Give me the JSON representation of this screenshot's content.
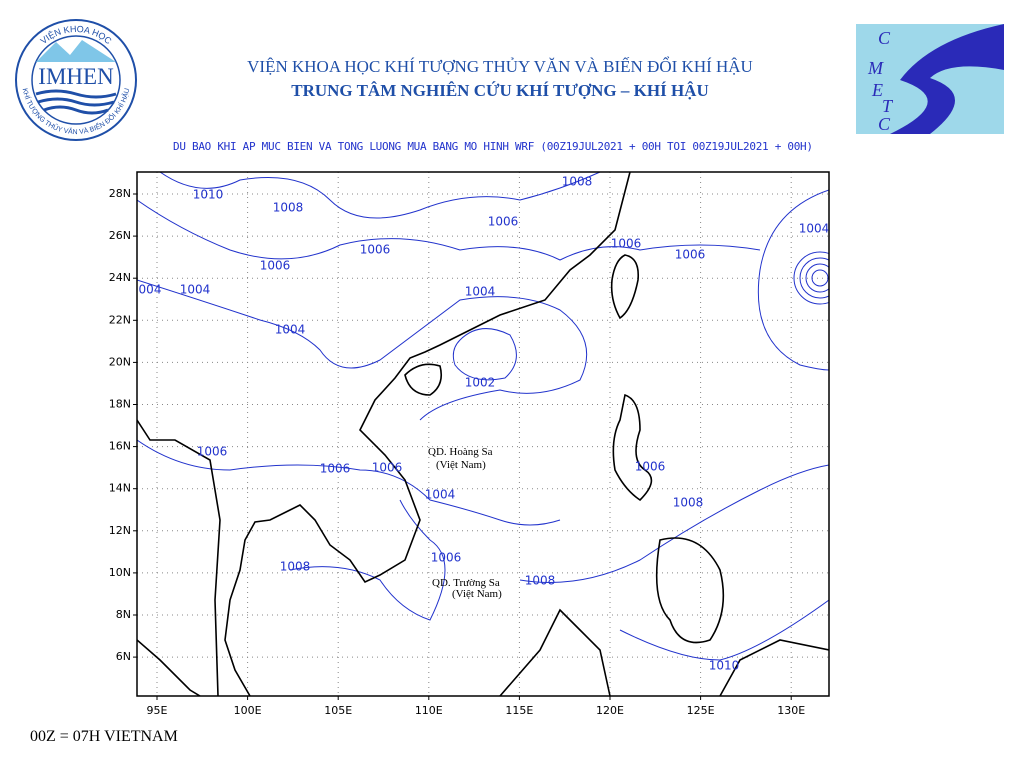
{
  "header": {
    "institute": "VIỆN KHOA HỌC KHÍ TƯỢNG THỦY VĂN VÀ BIẾN ĐỔI KHÍ HẬU",
    "center": "TRUNG TÂM NGHIÊN CỨU KHÍ TƯỢNG – KHÍ HẬU"
  },
  "logos": {
    "left": {
      "name": "IMHEN",
      "ring_top": "VIỆN KHOA HỌC",
      "ring_bottom": "KHÍ TƯỢNG THỦY VĂN VÀ BIẾN ĐỔI KHÍ HẬU"
    },
    "right": {
      "letters": [
        "C",
        "M",
        "E",
        "T",
        "C"
      ]
    }
  },
  "map": {
    "title": "DU BAO KHI AP MUC BIEN VA TONG LUONG MUA BANG MO HINH WRF (00Z19JUL2021 + 00H TOI 00Z19JUL2021 + 00H)",
    "lon_ticks": [
      {
        "value": 95,
        "label": "95E"
      },
      {
        "value": 100,
        "label": "100E"
      },
      {
        "value": 105,
        "label": "105E"
      },
      {
        "value": 110,
        "label": "110E"
      },
      {
        "value": 115,
        "label": "115E"
      },
      {
        "value": 120,
        "label": "120E"
      },
      {
        "value": 125,
        "label": "125E"
      },
      {
        "value": 130,
        "label": "130E"
      }
    ],
    "lat_ticks": [
      {
        "value": 6,
        "label": "6N"
      },
      {
        "value": 8,
        "label": "8N"
      },
      {
        "value": 10,
        "label": "10N"
      },
      {
        "value": 12,
        "label": "12N"
      },
      {
        "value": 14,
        "label": "14N"
      },
      {
        "value": 16,
        "label": "16N"
      },
      {
        "value": 18,
        "label": "18N"
      },
      {
        "value": 20,
        "label": "20N"
      },
      {
        "value": 22,
        "label": "22N"
      },
      {
        "value": 24,
        "label": "24N"
      },
      {
        "value": 26,
        "label": "26N"
      },
      {
        "value": 28,
        "label": "28N"
      }
    ],
    "contour_labels": [
      "1010",
      "1008",
      "1008",
      "1006",
      "1006",
      "1006",
      "1006",
      "1006",
      "1004",
      "004",
      "1004",
      "1004",
      "1004",
      "1002",
      "1006",
      "1006",
      "1006",
      "1004",
      "1006",
      "1008",
      "1006",
      "1008",
      "1008",
      "1010"
    ],
    "annotations": [
      "QD. Hoàng Sa",
      "(Việt Nam)",
      "QD. Trường Sa",
      "(Việt Nam)"
    ]
  },
  "footer": "00Z = 07H VIETNAM"
}
